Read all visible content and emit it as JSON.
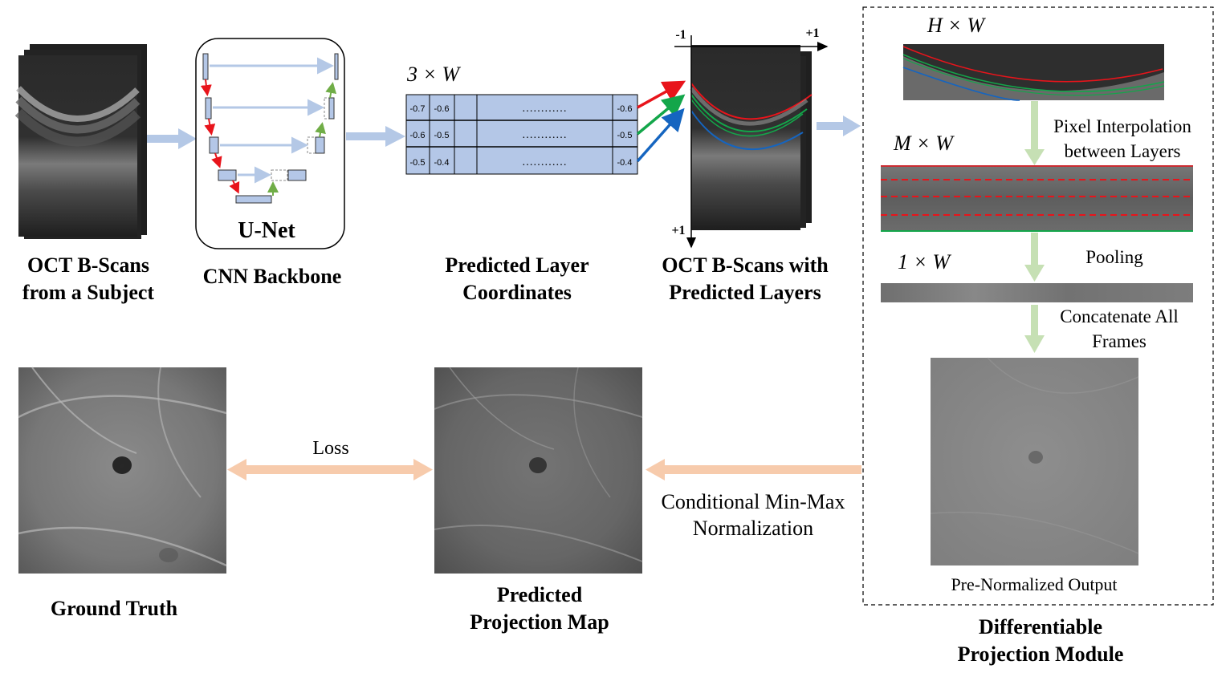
{
  "labels": {
    "oct_input_line1": "OCT B-Scans",
    "oct_input_line2": "from a Subject",
    "cnn_backbone": "CNN Backbone",
    "unet_title": "U-Net",
    "predicted_coords_line1": "Predicted Layer",
    "predicted_coords_line2": "Coordinates",
    "oct_pred_line1": "OCT B-Scans with",
    "oct_pred_line2": "Predicted Layers",
    "ground_truth": "Ground Truth",
    "predicted_map_line1": "Predicted",
    "predicted_map_line2": "Projection Map",
    "module_line1": "Differentiable",
    "module_line2": "Projection Module",
    "loss": "Loss",
    "normalization_line1": "Conditional Min-Max",
    "normalization_line2": "Normalization",
    "pixel_interp_line1": "Pixel Interpolation",
    "pixel_interp_line2": "between Layers",
    "pooling": "Pooling",
    "concat_line1": "Concatenate All",
    "concat_line2": "Frames",
    "pre_normalized": "Pre-Normalized Output"
  },
  "dims": {
    "coords": "3 × W",
    "hw": "H × W",
    "mw": "M × W",
    "onew": "1 × W"
  },
  "axis": {
    "x_min": "-1",
    "x_max": "+1",
    "y_max": "+1"
  },
  "coord_table": {
    "dots": "…………",
    "rows": [
      {
        "c1": "-0.7",
        "c2": "-0.6",
        "last": "-0.6"
      },
      {
        "c1": "-0.6",
        "c2": "-0.5",
        "last": "-0.5"
      },
      {
        "c1": "-0.5",
        "c2": "-0.4",
        "last": "-0.4"
      }
    ]
  },
  "colors": {
    "layer_1": "#e8141b",
    "layer_2": "#13a64a",
    "layer_3": "#1565c0",
    "flow_arrow": "#b4c8e6",
    "interp_arrow": "#c6e0b4",
    "loss_arrow": "#f7cbac",
    "table_fill": "#b4c7e7"
  }
}
